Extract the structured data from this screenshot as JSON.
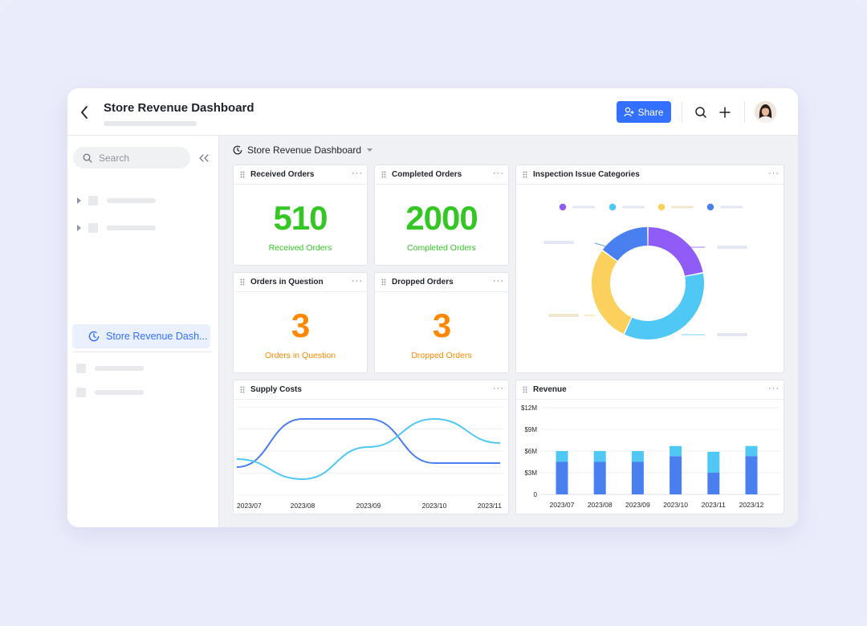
{
  "header": {
    "title": "Store Revenue Dashboard",
    "share_label": "Share",
    "back_icon": "chevron-left-icon",
    "search_icon": "search-icon",
    "add_icon": "plus-icon"
  },
  "sidebar": {
    "search_placeholder": "Search",
    "active_item": "Store Revenue Dash..."
  },
  "main": {
    "dashboard_title": "Store Revenue Dashboard"
  },
  "cards": {
    "received": {
      "title": "Received Orders",
      "value": "510",
      "label": "Received Orders"
    },
    "completed": {
      "title": "Completed Orders",
      "value": "2000",
      "label": "Completed Orders"
    },
    "question": {
      "title": "Orders in Question",
      "value": "3",
      "label": "Orders in Question"
    },
    "dropped": {
      "title": "Dropped Orders",
      "value": "3",
      "label": "Dropped Orders"
    },
    "inspection": {
      "title": "Inspection Issue Categories"
    },
    "supply": {
      "title": "Supply Costs"
    },
    "revenue": {
      "title": "Revenue"
    },
    "more_label": "···"
  },
  "colors": {
    "accent": "#3370ff",
    "green": "#34c724",
    "orange": "#ff8800",
    "purple": "#8f5cf7",
    "cyan": "#4fc8f6",
    "yellow": "#fbd05c",
    "blue": "#4a7ff0"
  },
  "chart_data": [
    {
      "type": "pie",
      "title": "Inspection Issue Categories",
      "series": [
        {
          "color": "#8f5cf7",
          "value": 22
        },
        {
          "color": "#4fc8f6",
          "value": 35
        },
        {
          "color": "#fbd05c",
          "value": 28
        },
        {
          "color": "#4a7ff0",
          "value": 15
        }
      ],
      "legend": "top"
    },
    {
      "type": "line",
      "title": "Supply Costs",
      "x": [
        "2023/07",
        "2023/08",
        "2023/09",
        "2023/10",
        "2023/11"
      ],
      "series": [
        {
          "color": "#4a7ff0",
          "values": [
            35,
            95,
            95,
            40,
            40
          ]
        },
        {
          "color": "#4fc8f6",
          "values": [
            45,
            20,
            60,
            95,
            65
          ]
        }
      ],
      "ylim": [
        0,
        110
      ],
      "grid": true
    },
    {
      "type": "bar",
      "title": "Revenue",
      "categories": [
        "2023/07",
        "2023/08",
        "2023/09",
        "2023/10",
        "2023/11",
        "2023/12"
      ],
      "yticks": [
        "0",
        "$3M",
        "$6M",
        "$9M",
        "$12M"
      ],
      "ylim": [
        0,
        12
      ],
      "series": [
        {
          "color": "#4a7ff0",
          "values": [
            4.5,
            4.5,
            4.5,
            5.3,
            3.0,
            5.3
          ]
        },
        {
          "color": "#4fc8f6",
          "values": [
            1.5,
            1.5,
            1.5,
            1.4,
            2.9,
            1.4
          ]
        }
      ],
      "stacked": true,
      "grid": true
    }
  ]
}
